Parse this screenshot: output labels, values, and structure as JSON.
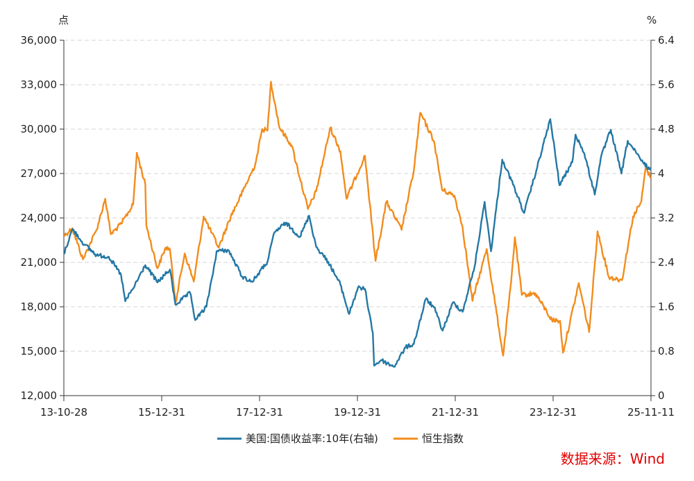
{
  "chart_data": {
    "type": "line",
    "title": "",
    "left_unit": "点",
    "right_unit": "%",
    "source": "数据来源：Wind",
    "x_ticks": [
      "13-10-28",
      "15-12-31",
      "17-12-31",
      "19-12-31",
      "21-12-31",
      "23-12-31",
      "25-11-11"
    ],
    "y_left": {
      "min": 12000,
      "max": 36000,
      "ticks": [
        "12,000",
        "15,000",
        "18,000",
        "21,000",
        "24,000",
        "27,000",
        "30,000",
        "33,000",
        "36,000"
      ]
    },
    "y_right": {
      "min": 0,
      "max": 6.4,
      "ticks": [
        "0",
        "0.8",
        "1.6",
        "2.4",
        "3.2",
        "4",
        "4.8",
        "5.6",
        "6.4"
      ]
    },
    "x_range": [
      "2013-10-28",
      "2025-11-11"
    ],
    "grid": "horizontal dashed",
    "legend_position": "bottom",
    "series": [
      {
        "name": "美国:国债收益率:10年(右轴)",
        "axis": "right",
        "color": "#2477a4",
        "points": [
          [
            "2013-10-28",
            2.55
          ],
          [
            "2013-12-31",
            3.0
          ],
          [
            "2014-03-31",
            2.72
          ],
          [
            "2014-06-30",
            2.53
          ],
          [
            "2014-09-30",
            2.5
          ],
          [
            "2014-12-31",
            2.17
          ],
          [
            "2015-01-31",
            1.7
          ],
          [
            "2015-03-31",
            1.93
          ],
          [
            "2015-06-30",
            2.35
          ],
          [
            "2015-09-30",
            2.04
          ],
          [
            "2015-12-31",
            2.27
          ],
          [
            "2016-02-11",
            1.64
          ],
          [
            "2016-05-31",
            1.85
          ],
          [
            "2016-07-08",
            1.36
          ],
          [
            "2016-09-30",
            1.6
          ],
          [
            "2016-11-30",
            2.38
          ],
          [
            "2016-12-15",
            2.6
          ],
          [
            "2017-03-13",
            2.62
          ],
          [
            "2017-06-26",
            2.14
          ],
          [
            "2017-09-07",
            2.05
          ],
          [
            "2017-12-31",
            2.41
          ],
          [
            "2018-02-21",
            2.94
          ],
          [
            "2018-05-17",
            3.11
          ],
          [
            "2018-08-31",
            2.86
          ],
          [
            "2018-11-08",
            3.24
          ],
          [
            "2018-12-31",
            2.68
          ],
          [
            "2019-03-31",
            2.41
          ],
          [
            "2019-06-30",
            2.0
          ],
          [
            "2019-09-03",
            1.47
          ],
          [
            "2019-11-08",
            1.94
          ],
          [
            "2019-12-31",
            1.92
          ],
          [
            "2020-02-28",
            1.13
          ],
          [
            "2020-03-09",
            0.54
          ],
          [
            "2020-04-30",
            0.64
          ],
          [
            "2020-08-04",
            0.52
          ],
          [
            "2020-10-31",
            0.87
          ],
          [
            "2020-12-31",
            0.93
          ],
          [
            "2021-03-31",
            1.74
          ],
          [
            "2021-05-31",
            1.59
          ],
          [
            "2021-08-04",
            1.17
          ],
          [
            "2021-10-21",
            1.68
          ],
          [
            "2021-12-31",
            1.51
          ],
          [
            "2022-03-31",
            2.32
          ],
          [
            "2022-06-14",
            3.49
          ],
          [
            "2022-08-01",
            2.6
          ],
          [
            "2022-10-24",
            4.25
          ],
          [
            "2022-12-31",
            3.88
          ],
          [
            "2023-04-06",
            3.29
          ],
          [
            "2023-07-07",
            4.06
          ],
          [
            "2023-10-19",
            4.98
          ],
          [
            "2023-12-27",
            3.79
          ],
          [
            "2024-03-31",
            4.2
          ],
          [
            "2024-04-25",
            4.7
          ],
          [
            "2024-06-30",
            4.36
          ],
          [
            "2024-09-16",
            3.62
          ],
          [
            "2024-10-31",
            4.28
          ],
          [
            "2025-01-14",
            4.79
          ],
          [
            "2025-04-04",
            4.0
          ],
          [
            "2025-05-21",
            4.59
          ],
          [
            "2025-08-31",
            4.23
          ],
          [
            "2025-10-31",
            4.08
          ],
          [
            "2025-11-11",
            4.11
          ]
        ]
      },
      {
        "name": "恒生指数",
        "axis": "left",
        "color": "#f28c1c",
        "points": [
          [
            "2013-10-28",
            22800
          ],
          [
            "2013-12-31",
            23300
          ],
          [
            "2014-03-20",
            21200
          ],
          [
            "2014-06-30",
            23200
          ],
          [
            "2014-09-03",
            25300
          ],
          [
            "2014-10-15",
            22900
          ],
          [
            "2014-12-31",
            23600
          ],
          [
            "2015-03-31",
            24900
          ],
          [
            "2015-04-28",
            28400
          ],
          [
            "2015-06-30",
            26250
          ],
          [
            "2015-07-08",
            23500
          ],
          [
            "2015-09-29",
            20600
          ],
          [
            "2015-11-30",
            22000
          ],
          [
            "2015-12-31",
            21900
          ],
          [
            "2016-02-12",
            18300
          ],
          [
            "2016-04-20",
            21600
          ],
          [
            "2016-06-27",
            19700
          ],
          [
            "2016-09-09",
            24100
          ],
          [
            "2016-12-31",
            22000
          ],
          [
            "2017-03-31",
            24100
          ],
          [
            "2017-06-30",
            25800
          ],
          [
            "2017-09-30",
            27600
          ],
          [
            "2017-11-22",
            30000
          ],
          [
            "2017-12-31",
            29900
          ],
          [
            "2018-01-26",
            33200
          ],
          [
            "2018-03-31",
            30100
          ],
          [
            "2018-06-30",
            28900
          ],
          [
            "2018-10-30",
            24600
          ],
          [
            "2018-12-31",
            25800
          ],
          [
            "2019-04-16",
            30100
          ],
          [
            "2019-06-30",
            28500
          ],
          [
            "2019-08-15",
            25300
          ],
          [
            "2019-12-31",
            28200
          ],
          [
            "2020-03-19",
            21100
          ],
          [
            "2020-06-09",
            25100
          ],
          [
            "2020-09-30",
            23200
          ],
          [
            "2020-12-31",
            27200
          ],
          [
            "2021-02-17",
            31100
          ],
          [
            "2021-05-31",
            29200
          ],
          [
            "2021-07-31",
            25900
          ],
          [
            "2021-10-31",
            25500
          ],
          [
            "2021-12-31",
            23400
          ],
          [
            "2022-03-15",
            18400
          ],
          [
            "2022-06-30",
            21900
          ],
          [
            "2022-10-31",
            14700
          ],
          [
            "2022-12-31",
            19800
          ],
          [
            "2023-01-27",
            22700
          ],
          [
            "2023-03-20",
            18800
          ],
          [
            "2023-06-30",
            18900
          ],
          [
            "2023-10-31",
            17100
          ],
          [
            "2023-12-31",
            17050
          ],
          [
            "2024-01-22",
            14900
          ],
          [
            "2024-05-20",
            19600
          ],
          [
            "2024-08-05",
            16300
          ],
          [
            "2024-10-07",
            23100
          ],
          [
            "2024-12-31",
            20000
          ],
          [
            "2025-04-08",
            19800
          ],
          [
            "2025-06-30",
            24100
          ],
          [
            "2025-08-31",
            25100
          ],
          [
            "2025-10-02",
            27400
          ],
          [
            "2025-11-11",
            26700
          ]
        ]
      }
    ]
  }
}
